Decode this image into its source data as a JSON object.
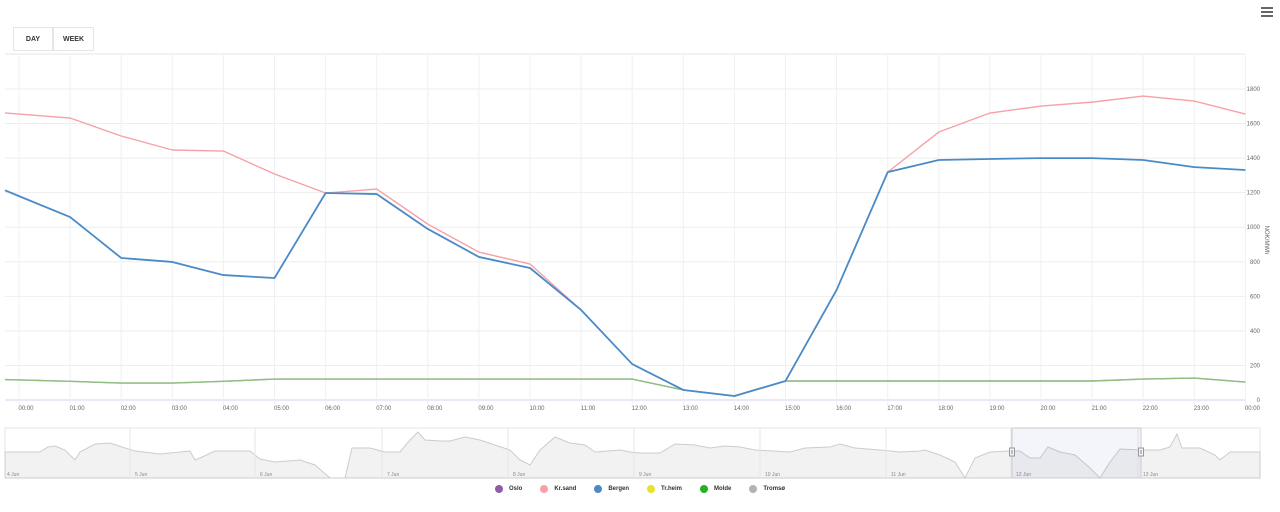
{
  "toolbar": {
    "buttons": [
      {
        "label": "DAY"
      },
      {
        "label": "WEEK"
      }
    ],
    "menu_icon": "hamburger-menu-icon"
  },
  "chart_data": {
    "type": "line",
    "title": "",
    "xlabel": "",
    "ylabel": "NOK/MWh",
    "ylim": [
      0,
      1800
    ],
    "y_ticks": [
      "0",
      "200",
      "400",
      "600",
      "800",
      "1000",
      "1200",
      "1400",
      "1600",
      "1800"
    ],
    "x_ticks": [
      "00:00",
      "01:00",
      "02:00",
      "03:00",
      "04:00",
      "05:00",
      "06:00",
      "07:00",
      "08:00",
      "09:00",
      "10:00",
      "11:00",
      "12:00",
      "13:00",
      "14:00",
      "15:00",
      "16:00",
      "17:00",
      "18:00",
      "19:00",
      "20:00",
      "21:00",
      "22:00",
      "23:00",
      "00:00"
    ],
    "grid": true,
    "legend_position": "bottom",
    "x": [
      "00:00",
      "01:00",
      "02:00",
      "03:00",
      "04:00",
      "05:00",
      "06:00",
      "07:00",
      "08:00",
      "09:00",
      "10:00",
      "11:00",
      "12:00",
      "13:00",
      "14:00",
      "15:00",
      "16:00",
      "17:00",
      "18:00",
      "19:00",
      "20:00",
      "21:00",
      "22:00",
      "23:00",
      "00:00"
    ],
    "series": [
      {
        "name": "Oslo",
        "color": "#8e5ea2",
        "values": [
          116,
          108,
          98,
          98,
          108,
          121,
          121,
          121,
          121,
          121,
          121,
          121,
          121,
          58,
          23,
          110,
          110,
          110,
          110,
          110,
          110,
          110,
          121,
          127,
          104
        ]
      },
      {
        "name": "Kr.sand",
        "color": "#f7a1a6",
        "values": [
          1655,
          1632,
          1528,
          1447,
          1441,
          1308,
          1198,
          1221,
          1018,
          856,
          787,
          521,
          208,
          58,
          23,
          110,
          637,
          1319,
          1551,
          1661,
          1701,
          1724,
          1759,
          1730,
          1655
        ]
      },
      {
        "name": "Bergen",
        "color": "#4a8bc7",
        "values": [
          1180,
          1059,
          822,
          799,
          723,
          706,
          1198,
          1192,
          990,
          828,
          764,
          521,
          208,
          58,
          23,
          110,
          637,
          1319,
          1389,
          1395,
          1400,
          1400,
          1389,
          1348,
          1331
        ]
      },
      {
        "name": "Tr.heim",
        "color": "#e6e32c",
        "values": [
          116,
          108,
          98,
          98,
          108,
          121,
          121,
          121,
          121,
          121,
          121,
          121,
          121,
          58,
          23,
          110,
          110,
          110,
          110,
          110,
          110,
          110,
          121,
          127,
          104
        ]
      },
      {
        "name": "Molde",
        "color": "#22b222",
        "values": [
          116,
          108,
          98,
          98,
          108,
          121,
          121,
          121,
          121,
          121,
          121,
          121,
          121,
          58,
          23,
          110,
          110,
          110,
          110,
          110,
          110,
          110,
          121,
          127,
          104
        ]
      },
      {
        "name": "Tromsø",
        "color": "#b3b3b3",
        "values": [
          116,
          108,
          98,
          98,
          108,
          121,
          121,
          121,
          121,
          121,
          121,
          121,
          121,
          58,
          23,
          110,
          110,
          110,
          110,
          110,
          110,
          110,
          121,
          127,
          104
        ]
      }
    ]
  },
  "navigator": {
    "dates": [
      "4 Jun",
      "5 Jun",
      "6 Jun",
      "7 Jun",
      "8 Jun",
      "9 Jun",
      "10 Jun",
      "11 Jun",
      "12 Jun",
      "13 Jun"
    ],
    "selected_range": "12 Jun"
  },
  "legend": {
    "items": [
      {
        "label": "Oslo",
        "color": "#8e5ea2"
      },
      {
        "label": "Kr.sand",
        "color": "#f7a1a6"
      },
      {
        "label": "Bergen",
        "color": "#4a8bc7"
      },
      {
        "label": "Tr.heim",
        "color": "#e6e32c"
      },
      {
        "label": "Molde",
        "color": "#22b222"
      },
      {
        "label": "Tromsø",
        "color": "#b3b3b3"
      }
    ]
  }
}
